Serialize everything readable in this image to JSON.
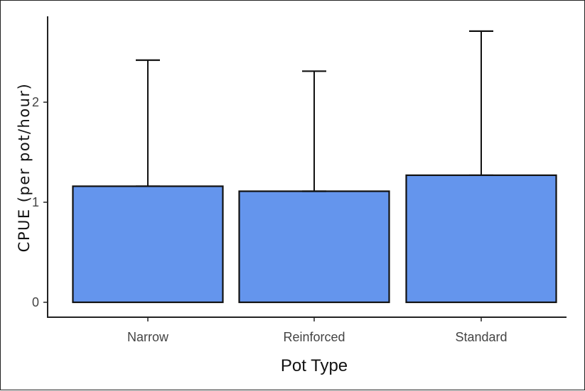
{
  "chart_data": {
    "type": "bar",
    "title": "",
    "xlabel": "Pot Type",
    "ylabel": "CPUE (per pot/hour)",
    "categories": [
      "Narrow",
      "Reinforced",
      "Standard"
    ],
    "values": [
      1.16,
      1.11,
      1.27
    ],
    "error_upper": [
      2.42,
      2.31,
      2.71
    ],
    "ylim": [
      0,
      2.85
    ],
    "yticks": [
      "0",
      "1",
      "2"
    ],
    "grid": false,
    "legend": "none",
    "bar_color": "#6495ED",
    "bar_edge_color": "#111111"
  }
}
